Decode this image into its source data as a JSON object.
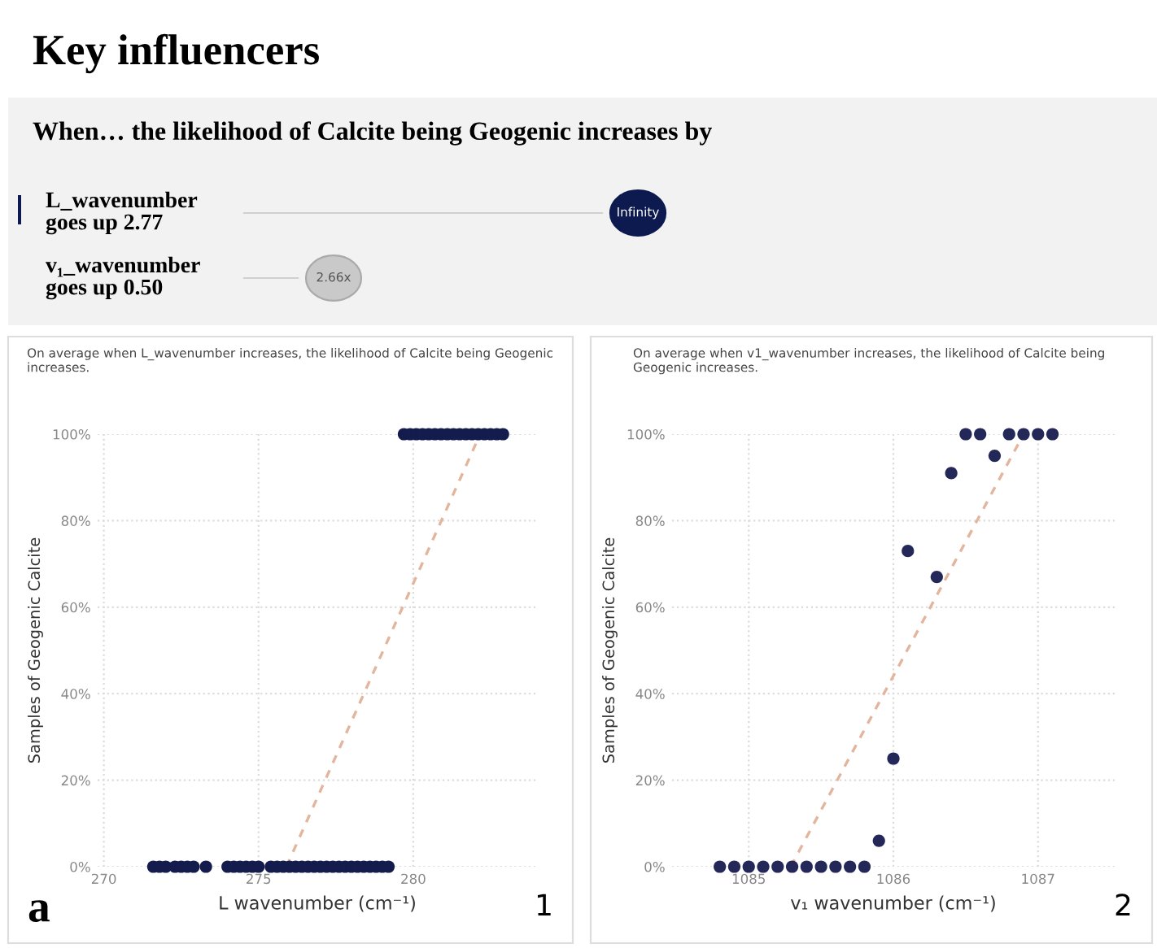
{
  "chart_data": [
    {
      "type": "other",
      "title": "Key influencers",
      "subtitle": "When… the likelihood of Calcite being Geogenic increases by",
      "annotations": [
        "L_wavenumber\ngoes up 2.77",
        "Infinity",
        "v₁_wavenumber\ngoes up 0.50",
        "2.66x"
      ],
      "colors": [
        "#0d1a4f",
        "#c9c9c9"
      ]
    },
    {
      "type": "scatter",
      "title": "On average when L_wavenumber increases, the likelihood of Calcite being Geogenic increases.",
      "xlabel": "L wavenumber (cm⁻¹)",
      "ylabel": "Samples of Geogenic Calcite",
      "xlim": [
        269.8,
        284
      ],
      "xticks": [
        270,
        275,
        280
      ],
      "ylim": [
        0,
        100
      ],
      "yticks": [
        {
          "value": 0,
          "label": "0%"
        },
        {
          "value": 20,
          "label": "20%"
        },
        {
          "value": 40,
          "label": "40%"
        },
        {
          "value": 60,
          "label": "60%"
        },
        {
          "value": 80,
          "label": "80%"
        },
        {
          "value": 100,
          "label": "100%"
        }
      ],
      "grid": true,
      "annotations": [
        "a",
        "1"
      ],
      "series": [
        {
          "type": "scatter",
          "marker": "circle",
          "color": "#141b4d",
          "x": [
            271.6,
            271.8,
            272.0,
            272.3,
            272.5,
            272.7,
            272.9,
            273.3,
            274.0,
            274.2,
            274.4,
            274.6,
            274.8,
            275.0,
            275.4,
            275.6,
            275.8,
            276.0,
            276.2,
            276.4,
            276.6,
            276.8,
            277.0,
            277.2,
            277.4,
            277.6,
            277.8,
            278.0,
            278.2,
            278.4,
            278.6,
            278.8,
            279.0,
            279.2,
            279.7,
            279.9,
            280.1,
            280.3,
            280.5,
            280.7,
            280.9,
            281.1,
            281.3,
            281.5,
            281.7,
            281.9,
            282.1,
            282.3,
            282.5,
            282.7,
            282.9
          ],
          "values": [
            0,
            0,
            0,
            0,
            0,
            0,
            0,
            0,
            0,
            0,
            0,
            0,
            0,
            0,
            0,
            0,
            0,
            0,
            0,
            0,
            0,
            0,
            0,
            0,
            0,
            0,
            0,
            0,
            0,
            0,
            0,
            0,
            0,
            0,
            100,
            100,
            100,
            100,
            100,
            100,
            100,
            100,
            100,
            100,
            100,
            100,
            100,
            100,
            100,
            100,
            100
          ]
        },
        {
          "type": "line",
          "marker": "none",
          "color": "#e3b59c",
          "line_style": "dashed",
          "x": [
            275.9,
            282.1
          ],
          "values": [
            0,
            99
          ]
        }
      ]
    },
    {
      "type": "scatter",
      "title": "On average when v1_wavenumber increases, the likelihood of Calcite being Geogenic increases.",
      "xlabel": "v₁ wavenumber (cm⁻¹)",
      "ylabel": "Samples of Geogenic Calcite",
      "xlim": [
        1084.47,
        1087.53
      ],
      "xticks": [
        1085,
        1086,
        1087
      ],
      "ylim": [
        0,
        100
      ],
      "yticks": [
        {
          "value": 0,
          "label": "0%"
        },
        {
          "value": 20,
          "label": "20%"
        },
        {
          "value": 40,
          "label": "40%"
        },
        {
          "value": 60,
          "label": "60%"
        },
        {
          "value": 80,
          "label": "80%"
        },
        {
          "value": 100,
          "label": "100%"
        }
      ],
      "grid": true,
      "annotations": [
        "2"
      ],
      "series": [
        {
          "type": "scatter",
          "marker": "circle",
          "color": "#232859",
          "x": [
            1084.8,
            1084.9,
            1085.0,
            1085.1,
            1085.2,
            1085.3,
            1085.4,
            1085.5,
            1085.6,
            1085.7,
            1085.8,
            1085.9,
            1086.0,
            1086.1,
            1086.3,
            1086.4,
            1086.5,
            1086.6,
            1086.7,
            1086.8,
            1086.9,
            1087.0,
            1087.1
          ],
          "values": [
            0,
            0,
            0,
            0,
            0,
            0,
            0,
            0,
            0,
            0,
            0,
            6,
            25,
            73,
            67,
            91,
            100,
            100,
            95,
            100,
            100,
            100,
            100
          ]
        },
        {
          "type": "line",
          "marker": "none",
          "color": "#e3b59c",
          "line_style": "dashed",
          "x": [
            1085.29,
            1086.9
          ],
          "values": [
            0,
            100
          ]
        }
      ]
    }
  ]
}
